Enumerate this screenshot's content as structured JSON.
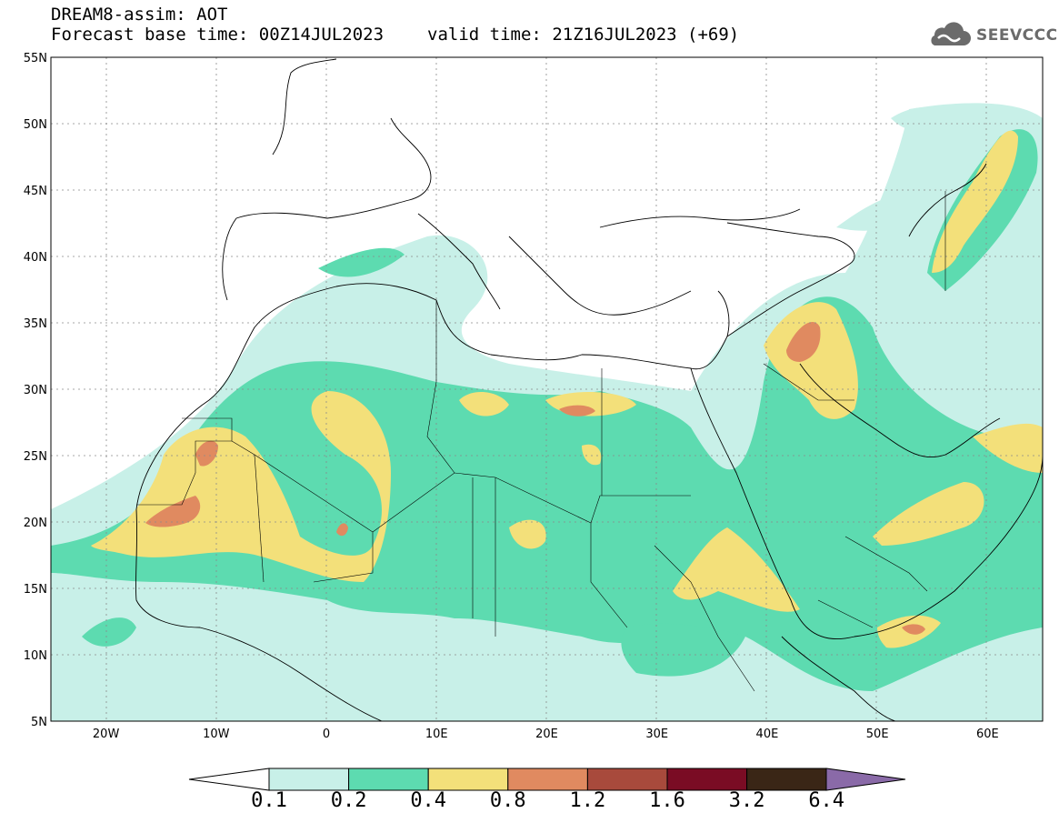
{
  "header": {
    "title": "DREAM8-assim: AOT",
    "base_time": "Forecast base time: 00Z14JUL2023",
    "valid_time": "valid time: 21Z16JUL2023 (+69)"
  },
  "logo": {
    "text": "SEEVCCC",
    "icon": "cloud-icon",
    "color": "#6b6b6b"
  },
  "map": {
    "lon_range": [
      -25,
      65
    ],
    "lat_range": [
      5,
      55
    ],
    "lat_labels": [
      "5N",
      "10N",
      "15N",
      "20N",
      "25N",
      "30N",
      "35N",
      "40N",
      "45N",
      "50N",
      "55N"
    ],
    "lat_values": [
      5,
      10,
      15,
      20,
      25,
      30,
      35,
      40,
      45,
      50,
      55
    ],
    "lon_labels": [
      "20W",
      "10W",
      "0",
      "10E",
      "20E",
      "30E",
      "40E",
      "50E",
      "60E"
    ],
    "lon_values": [
      -20,
      -10,
      0,
      10,
      20,
      30,
      40,
      50,
      60
    ],
    "grid": true
  },
  "colorbar": {
    "levels": [
      "0.1",
      "0.2",
      "0.4",
      "0.8",
      "1.2",
      "1.6",
      "3.2",
      "6.4"
    ],
    "colors": [
      "#c8f0e8",
      "#5ddbb0",
      "#f3e07a",
      "#e08a60",
      "#a84a3c",
      "#7a0c24",
      "#3a2616",
      "#8a6aa8"
    ]
  }
}
